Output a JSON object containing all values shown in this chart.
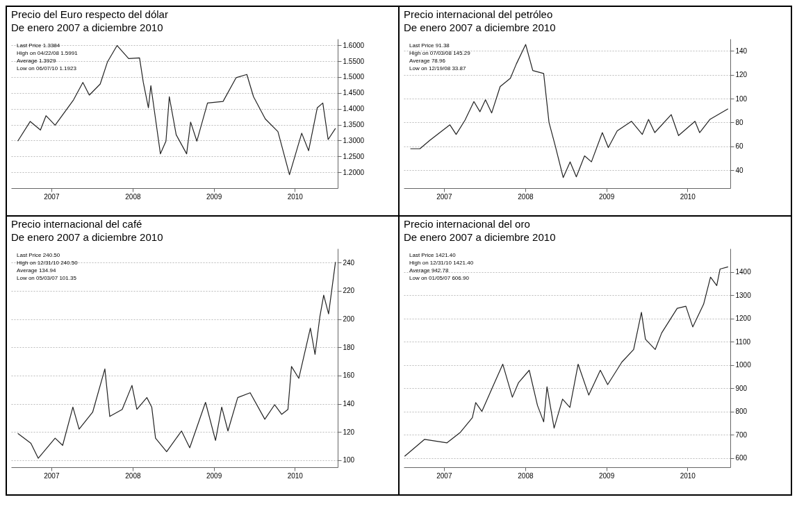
{
  "chart_data": [
    {
      "type": "line",
      "title": "Precio del Euro respecto del dólar",
      "subtitle": "De enero 2007 a diciembre 2010",
      "color": "#222222",
      "grid": "y",
      "x": [
        "2007-01-31",
        "2007-03-28",
        "2007-05-13",
        "2007-06-07",
        "2007-07-18",
        "2007-10-09",
        "2007-11-20",
        "2007-12-19",
        "2008-02-06",
        "2008-03-10",
        "2008-04-22",
        "2008-06-13",
        "2008-08-01",
        "2008-08-18",
        "2008-09-10",
        "2008-09-21",
        "2008-11-03",
        "2008-11-28",
        "2008-12-13",
        "2009-01-13",
        "2009-03-01",
        "2009-03-19",
        "2009-04-16",
        "2009-06-03",
        "2009-08-12",
        "2009-10-10",
        "2009-11-27",
        "2009-12-27",
        "2010-02-18",
        "2010-04-16",
        "2010-06-07",
        "2010-08-01",
        "2010-09-01",
        "2010-10-10",
        "2010-11-04",
        "2010-11-28",
        "2010-12-31"
      ],
      "values": [
        1.298,
        1.36,
        1.333,
        1.378,
        1.348,
        1.428,
        1.483,
        1.443,
        1.478,
        1.548,
        1.5991,
        1.558,
        1.56,
        1.483,
        1.403,
        1.473,
        1.258,
        1.298,
        1.438,
        1.318,
        1.258,
        1.358,
        1.298,
        1.418,
        1.423,
        1.498,
        1.508,
        1.438,
        1.368,
        1.328,
        1.1923,
        1.323,
        1.268,
        1.403,
        1.418,
        1.303,
        1.3384
      ],
      "xlim": [
        "2007-01-01",
        "2011-01-10"
      ],
      "xticks": [
        {
          "value": "2007-07-01",
          "label": "2007"
        },
        {
          "value": "2008-07-01",
          "label": "2008"
        },
        {
          "value": "2009-07-01",
          "label": "2009"
        },
        {
          "value": "2010-07-01",
          "label": "2010"
        }
      ],
      "ylim": [
        1.15,
        1.62
      ],
      "yticks": [
        {
          "value": 1.2,
          "label": "1.2000"
        },
        {
          "value": 1.25,
          "label": "1.2500"
        },
        {
          "value": 1.3,
          "label": "1.3000"
        },
        {
          "value": 1.35,
          "label": "1.3500"
        },
        {
          "value": 1.4,
          "label": "1.4000"
        },
        {
          "value": 1.45,
          "label": "1.4500"
        },
        {
          "value": 1.5,
          "label": "1.5000"
        },
        {
          "value": 1.55,
          "label": "1.5500"
        },
        {
          "value": 1.6,
          "label": "1.6000"
        }
      ],
      "annotations": [
        "Last Price 1.3384",
        "High on 04/22/08 1.5991",
        "Average 1.3929",
        "Low on 06/07/10 1.1923"
      ]
    },
    {
      "type": "line",
      "title": "Precio internacional del petróleo",
      "subtitle": "De enero 2007 a diciembre 2010",
      "color": "#222222",
      "grid": "y",
      "x": [
        "2007-01-31",
        "2007-03-15",
        "2007-04-28",
        "2007-07-28",
        "2007-08-25",
        "2007-10-04",
        "2007-11-13",
        "2007-12-10",
        "2008-01-04",
        "2008-02-01",
        "2008-03-10",
        "2008-04-25",
        "2008-05-22",
        "2008-07-03",
        "2008-08-04",
        "2008-09-22",
        "2008-10-16",
        "2008-11-13",
        "2008-12-19",
        "2009-01-19",
        "2009-02-16",
        "2009-03-25",
        "2009-04-25",
        "2009-06-13",
        "2009-07-10",
        "2009-08-19",
        "2009-10-22",
        "2009-12-10",
        "2010-01-07",
        "2010-02-04",
        "2010-04-19",
        "2010-05-22",
        "2010-08-04",
        "2010-08-25",
        "2010-10-10",
        "2010-12-31"
      ],
      "values": [
        58,
        58,
        65,
        78,
        70,
        82,
        97.5,
        89,
        99,
        88,
        110,
        117,
        129,
        145.29,
        123.5,
        121,
        80,
        60.5,
        33.87,
        47,
        34.5,
        52,
        47,
        71.5,
        59,
        73,
        81,
        70,
        82.5,
        71.5,
        86.6,
        69,
        81,
        71.5,
        82.5,
        91.38
      ],
      "xlim": [
        "2007-01-01",
        "2011-01-10"
      ],
      "xticks": [
        {
          "value": "2007-07-01",
          "label": "2007"
        },
        {
          "value": "2008-07-01",
          "label": "2008"
        },
        {
          "value": "2009-07-01",
          "label": "2009"
        },
        {
          "value": "2010-07-01",
          "label": "2010"
        }
      ],
      "ylim": [
        25,
        150
      ],
      "yticks": [
        40,
        60,
        80,
        100,
        120,
        140
      ],
      "annotations": [
        "Last Price 91.38",
        "High on 07/03/08 145.29",
        "Average 78.96",
        "Low on 12/19/08 33.87"
      ]
    },
    {
      "type": "line",
      "title": "Precio internacional del café",
      "subtitle": "De enero 2007 a diciembre 2010",
      "color": "#222222",
      "grid": "y",
      "x": [
        "2007-01-31",
        "2007-03-31",
        "2007-05-03",
        "2007-07-18",
        "2007-08-21",
        "2007-10-06",
        "2007-11-03",
        "2008-01-03",
        "2008-02-27",
        "2008-03-20",
        "2008-05-15",
        "2008-06-28",
        "2008-07-20",
        "2008-09-03",
        "2008-09-25",
        "2008-10-12",
        "2008-12-01",
        "2009-02-06",
        "2009-03-15",
        "2009-05-25",
        "2009-07-09",
        "2009-08-06",
        "2009-09-03",
        "2009-10-17",
        "2009-12-12",
        "2010-02-16",
        "2010-04-01",
        "2010-05-03",
        "2010-05-31",
        "2010-06-16",
        "2010-07-19",
        "2010-09-09",
        "2010-09-30",
        "2010-10-22",
        "2010-11-08",
        "2010-11-30",
        "2010-12-31"
      ],
      "values": [
        119,
        112,
        101.35,
        115.6,
        110.5,
        137.6,
        122,
        134,
        164.7,
        131,
        136,
        153,
        136,
        144.4,
        137.6,
        115.6,
        106,
        120.7,
        108.8,
        141,
        114,
        137.6,
        120.7,
        144.4,
        147.8,
        129,
        139.3,
        132.5,
        136,
        166.4,
        158,
        193.6,
        175,
        202,
        217,
        203.7,
        240.5
      ],
      "xlim": [
        "2007-01-01",
        "2011-01-10"
      ],
      "xticks": [
        {
          "value": "2007-07-01",
          "label": "2007"
        },
        {
          "value": "2008-07-01",
          "label": "2008"
        },
        {
          "value": "2009-07-01",
          "label": "2009"
        },
        {
          "value": "2010-07-01",
          "label": "2010"
        }
      ],
      "ylim": [
        95,
        250
      ],
      "yticks": [
        100,
        120,
        140,
        160,
        180,
        200,
        220,
        240
      ],
      "annotations": [
        "Last Price 240.50",
        "High on 12/31/10 240.50",
        "Average 134.94",
        "Low on 05/03/07 101.35"
      ]
    },
    {
      "type": "line",
      "title": "Precio internacional del oro",
      "subtitle": "De enero 2007 a diciembre 2010",
      "color": "#222222",
      "grid": "y",
      "x": [
        "2007-01-05",
        "2007-04-05",
        "2007-07-15",
        "2007-09-13",
        "2007-11-06",
        "2007-11-21",
        "2007-12-19",
        "2008-02-10",
        "2008-03-22",
        "2008-05-04",
        "2008-06-01",
        "2008-07-19",
        "2008-08-25",
        "2008-09-22",
        "2008-10-07",
        "2008-11-08",
        "2008-12-16",
        "2009-01-18",
        "2009-02-24",
        "2009-04-13",
        "2009-06-04",
        "2009-07-07",
        "2009-09-09",
        "2009-11-01",
        "2009-12-06",
        "2009-12-24",
        "2010-02-06",
        "2010-03-07",
        "2010-05-16",
        "2010-06-24",
        "2010-07-25",
        "2010-09-12",
        "2010-10-13",
        "2010-11-10",
        "2010-11-25",
        "2010-12-31"
      ],
      "values": [
        606.9,
        680,
        665,
        710,
        773,
        838,
        800,
        915,
        1003,
        861,
        924,
        977,
        826,
        755,
        906,
        728,
        853,
        817,
        1003,
        870,
        977,
        915,
        1012,
        1066,
        1226,
        1110,
        1066,
        1137,
        1243,
        1252,
        1163,
        1261,
        1377,
        1341,
        1412,
        1421.4
      ],
      "xlim": [
        "2007-01-01",
        "2011-01-10"
      ],
      "xticks": [
        {
          "value": "2007-07-01",
          "label": "2007"
        },
        {
          "value": "2008-07-01",
          "label": "2008"
        },
        {
          "value": "2009-07-01",
          "label": "2009"
        },
        {
          "value": "2010-07-01",
          "label": "2010"
        }
      ],
      "ylim": [
        560,
        1500
      ],
      "yticks": [
        600,
        700,
        800,
        900,
        1000,
        1100,
        1200,
        1300,
        1400
      ],
      "annotations": [
        "Last Price 1421.40",
        "High on 12/31/10 1421.40",
        "Average 942.78",
        "Low on 01/05/07 606.90"
      ]
    }
  ]
}
